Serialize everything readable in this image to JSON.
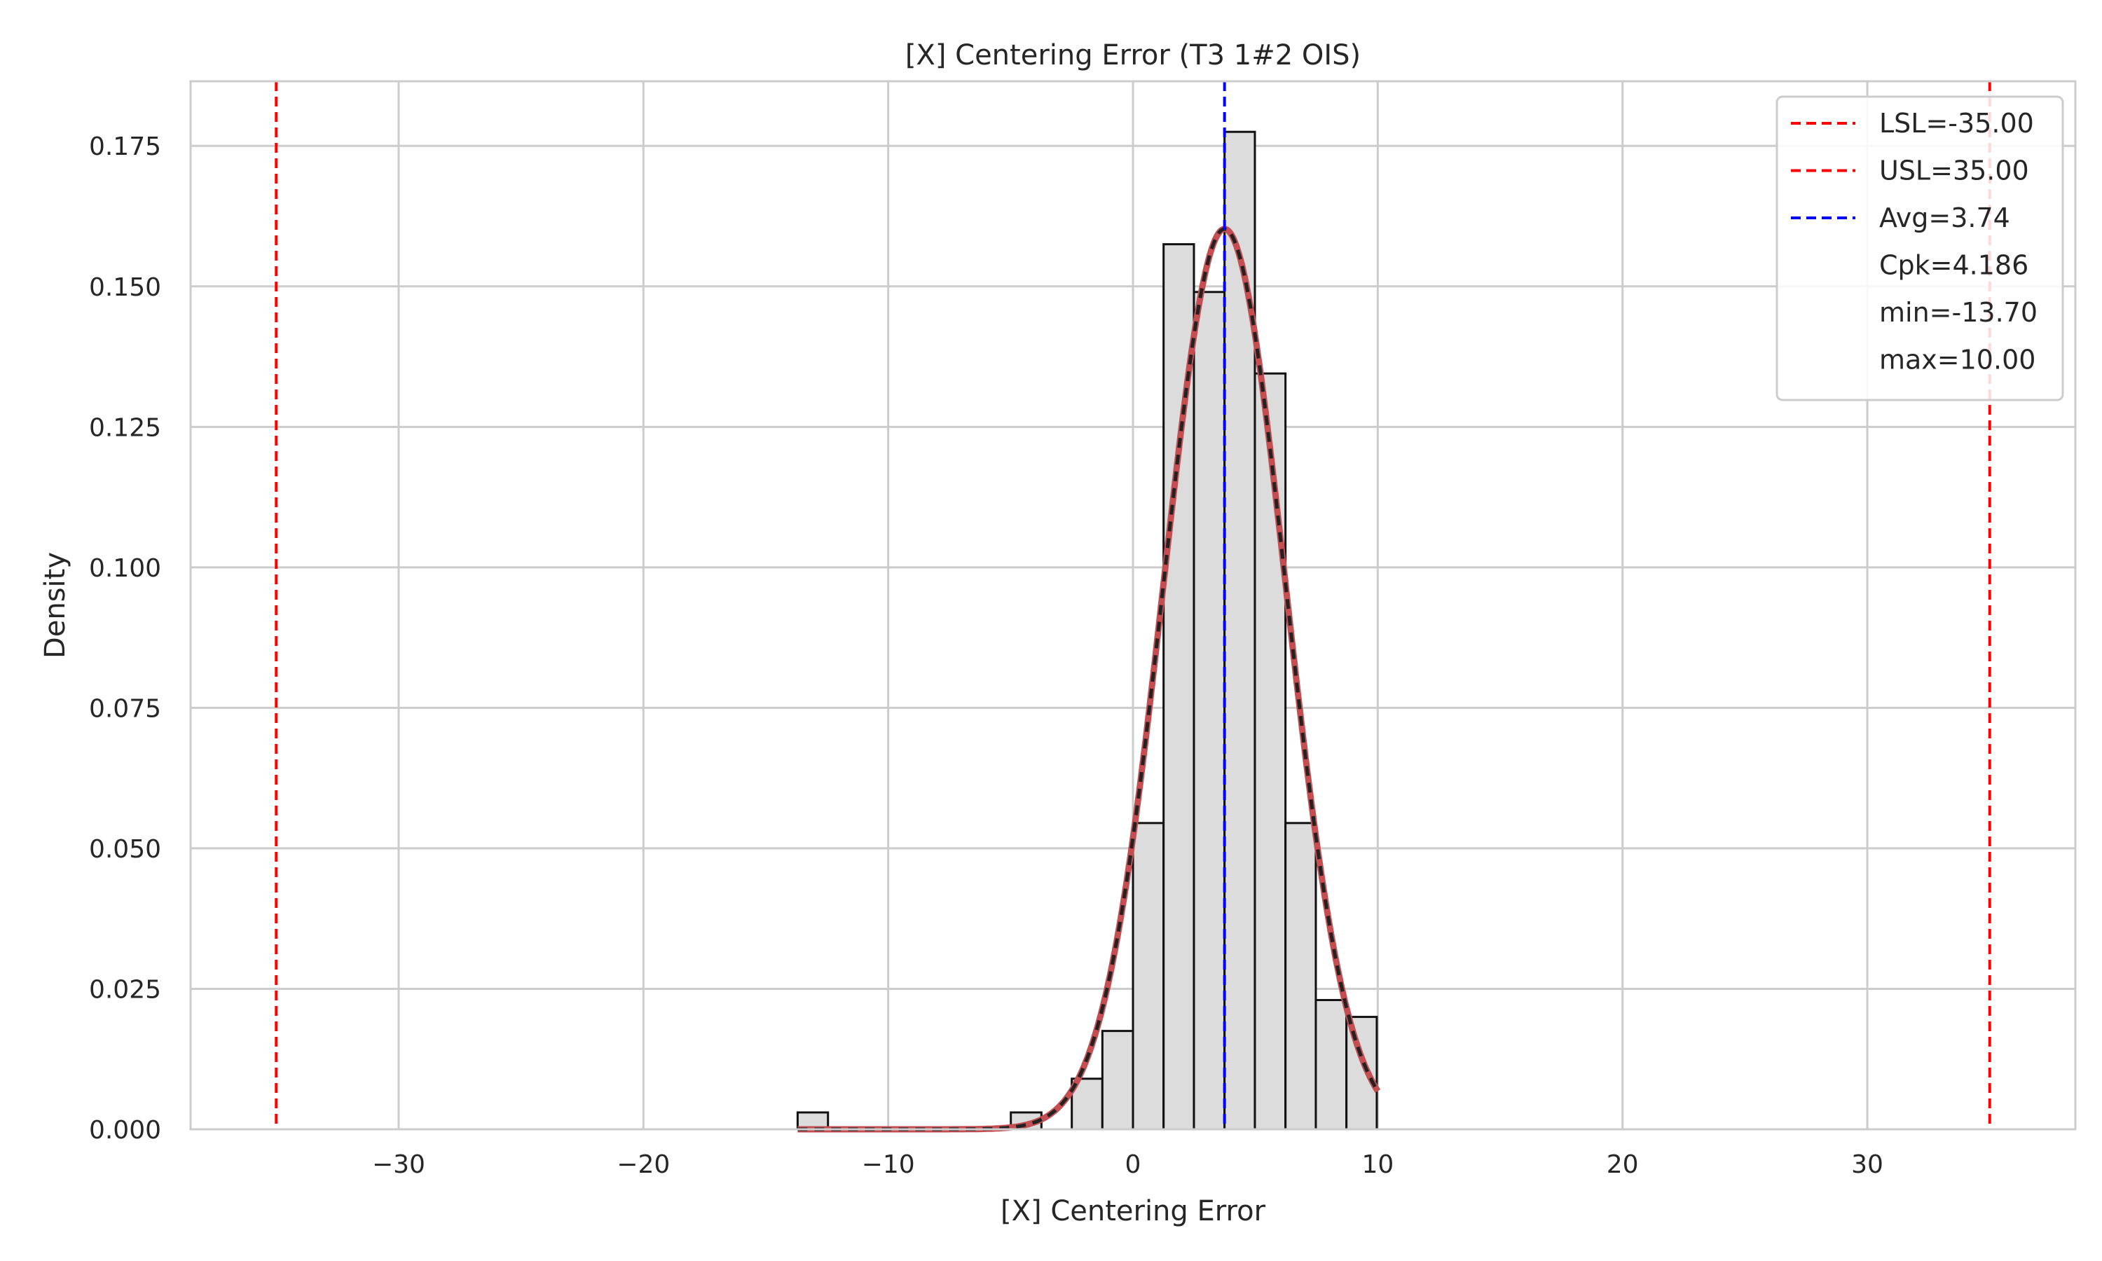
{
  "chart_data": {
    "type": "histogram",
    "title": "[X] Centering Error (T3 1#2 OIS)",
    "xlabel": "[X] Centering Error",
    "ylabel": "Density",
    "xlim": [
      -38.5,
      38.5
    ],
    "ylim": [
      0,
      0.1865
    ],
    "xticks": [
      -30,
      -20,
      -10,
      0,
      10,
      20,
      30
    ],
    "xtick_labels": [
      "−30",
      "−20",
      "−10",
      "0",
      "10",
      "20",
      "30"
    ],
    "yticks": [
      0,
      0.025,
      0.05,
      0.075,
      0.1,
      0.125,
      0.15,
      0.175
    ],
    "ytick_labels": [
      "0.000",
      "0.025",
      "0.050",
      "0.075",
      "0.100",
      "0.125",
      "0.150",
      "0.175"
    ],
    "grid": true,
    "bins": {
      "edges": [
        -13.7,
        -12.46,
        -11.21,
        -9.97,
        -8.72,
        -7.48,
        -6.23,
        -4.99,
        -3.74,
        -2.5,
        -1.25,
        0.0,
        1.25,
        2.49,
        3.74,
        4.98,
        6.23,
        7.47,
        8.72,
        9.96
      ],
      "density": [
        0.003,
        0,
        0,
        0,
        0,
        0,
        0,
        0.003,
        0,
        0.009,
        0.0175,
        0.0545,
        0.1575,
        0.149,
        0.1775,
        0.1345,
        0.0545,
        0.023,
        0.02
      ],
      "fill": "#dcdcdc",
      "edge": "#111111"
    },
    "fit_curve": {
      "distribution": "normal",
      "mean": 3.74,
      "std": 2.49,
      "x_range": [
        -13.7,
        10.0
      ],
      "color": "#c44e52",
      "overlay_color": "#222222"
    },
    "reference_lines": [
      {
        "label": "LSL=-35.00",
        "x": -35.0,
        "color": "#ff0000",
        "style": "dashed"
      },
      {
        "label": "USL=35.00",
        "x": 35.0,
        "color": "#ff0000",
        "style": "dashed"
      },
      {
        "label": "Avg=3.74",
        "x": 3.74,
        "color": "#0000ff",
        "style": "dashed"
      }
    ],
    "legend": {
      "placement": "top-right",
      "entries": [
        {
          "label": "LSL=-35.00",
          "color": "#ff0000",
          "marker": "dashed-line"
        },
        {
          "label": "USL=35.00",
          "color": "#ff0000",
          "marker": "dashed-line"
        },
        {
          "label": "Avg=3.74",
          "color": "#0000ff",
          "marker": "dashed-line"
        },
        {
          "label": "Cpk=4.186",
          "color": "",
          "marker": "none"
        },
        {
          "label": "min=-13.70",
          "color": "",
          "marker": "none"
        },
        {
          "label": "max=10.00",
          "color": "",
          "marker": "none"
        }
      ]
    }
  }
}
